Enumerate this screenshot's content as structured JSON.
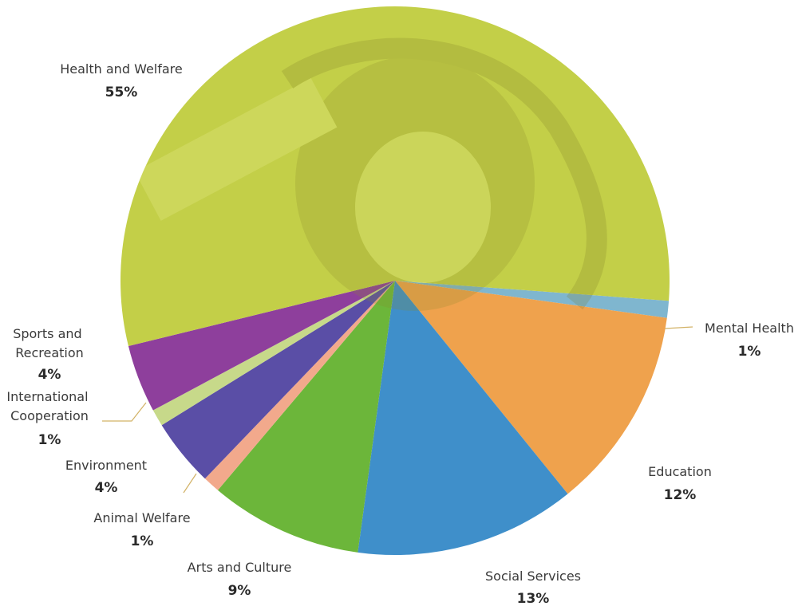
{
  "chart_data": {
    "type": "pie",
    "title": "",
    "slices": [
      {
        "label": "Health and Welfare",
        "value": 55,
        "pct_text": "55%",
        "color": "#c3cf48"
      },
      {
        "label": "Mental Health",
        "value": 1,
        "pct_text": "1%",
        "color": "#7fb6cf"
      },
      {
        "label": "Education",
        "value": 12,
        "pct_text": "12%",
        "color": "#efa24d"
      },
      {
        "label": "Social Services",
        "value": 13,
        "pct_text": "13%",
        "color": "#3f8fca"
      },
      {
        "label": "Arts and Culture",
        "value": 9,
        "pct_text": "9%",
        "color": "#6cb63a"
      },
      {
        "label": "Animal Welfare",
        "value": 1,
        "pct_text": "1%",
        "color": "#f2a98c"
      },
      {
        "label": "Environment",
        "value": 4,
        "pct_text": "4%",
        "color": "#5a4ea6"
      },
      {
        "label": "International Cooperation",
        "value": 1,
        "pct_text": "1%",
        "color": "#c7d98a"
      },
      {
        "label": "Sports and Recreation",
        "value": 4,
        "pct_text": "4%",
        "color": "#8e3f9c"
      }
    ],
    "leader_line_color": "#d2b266"
  }
}
